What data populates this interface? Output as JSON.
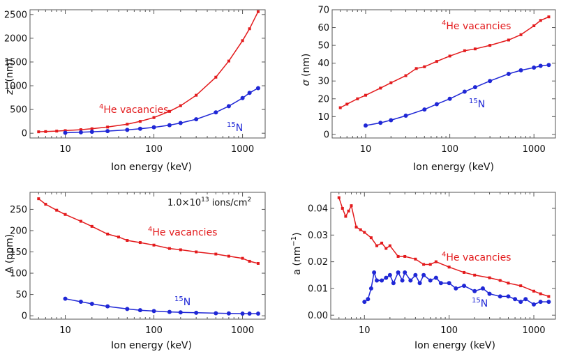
{
  "colors": {
    "red": "#e31a1c",
    "blue": "#1f27d6"
  },
  "chart_data": [
    {
      "type": "line",
      "xscale": "log",
      "xlim": [
        4,
        1800
      ],
      "ylim": [
        -100,
        2600
      ],
      "yticks": [
        "0",
        "500",
        "1000",
        "1500",
        "2000",
        "2500"
      ],
      "xticks": [
        "10",
        "100",
        "1000"
      ],
      "xlabel": "Ion energy (keV)",
      "ylabel_main": "z",
      "ylabel_sub": "0",
      "ylabel_rest": " (nm)",
      "annotations": [
        {
          "sup": "4",
          "text": "He vacancies",
          "series": "red"
        },
        {
          "sup": "15",
          "text": "N",
          "series": "blue"
        }
      ],
      "series": [
        {
          "name": "4He vacancies",
          "color": "red",
          "marker": "square",
          "x": [
            5,
            6,
            8,
            10,
            15,
            20,
            30,
            50,
            70,
            100,
            150,
            200,
            300,
            500,
            700,
            1000,
            1200,
            1500
          ],
          "y": [
            30,
            35,
            45,
            55,
            75,
            95,
            130,
            190,
            250,
            330,
            460,
            580,
            800,
            1180,
            1520,
            1950,
            2200,
            2560
          ]
        },
        {
          "name": "15N",
          "color": "blue",
          "marker": "circle",
          "x": [
            10,
            15,
            20,
            30,
            50,
            70,
            100,
            150,
            200,
            300,
            500,
            700,
            1000,
            1200,
            1500
          ],
          "y": [
            10,
            20,
            30,
            45,
            70,
            95,
            125,
            170,
            215,
            295,
            440,
            570,
            740,
            850,
            950
          ]
        }
      ]
    },
    {
      "type": "line",
      "xscale": "log",
      "xlim": [
        4,
        1800
      ],
      "ylim": [
        -2,
        70
      ],
      "yticks": [
        "0",
        "10",
        "20",
        "30",
        "40",
        "50",
        "60",
        "70"
      ],
      "xticks": [
        "10",
        "100",
        "1000"
      ],
      "xlabel": "Ion energy (keV)",
      "ylabel_main": "σ",
      "ylabel_sub": "",
      "ylabel_rest": " (nm)",
      "annotations": [
        {
          "sup": "4",
          "text": "He vacancies",
          "series": "red"
        },
        {
          "sup": "15",
          "text": "N",
          "series": "blue"
        }
      ],
      "series": [
        {
          "name": "4He vacancies",
          "color": "red",
          "marker": "square",
          "x": [
            5,
            6,
            8,
            10,
            15,
            20,
            30,
            40,
            50,
            70,
            100,
            150,
            200,
            300,
            500,
            700,
            1000,
            1200,
            1500
          ],
          "y": [
            15,
            17,
            20,
            22,
            26,
            29,
            33,
            37,
            38,
            41,
            44,
            47,
            48,
            50,
            53,
            56,
            61,
            64,
            66
          ]
        },
        {
          "name": "15N",
          "color": "blue",
          "marker": "circle",
          "x": [
            10,
            15,
            20,
            30,
            50,
            70,
            100,
            150,
            200,
            300,
            500,
            700,
            1000,
            1200,
            1500
          ],
          "y": [
            5,
            6.5,
            8,
            10.5,
            14,
            17,
            20,
            24,
            26.5,
            30,
            34,
            36,
            37.5,
            38.5,
            39
          ]
        }
      ]
    },
    {
      "type": "line",
      "xscale": "log",
      "xlim": [
        4,
        1800
      ],
      "ylim": [
        -8,
        290
      ],
      "yticks": [
        "0",
        "50",
        "100",
        "150",
        "200",
        "250"
      ],
      "xticks": [
        "10",
        "100",
        "1000"
      ],
      "xlabel": "Ion energy (keV)",
      "ylabel_main": "A",
      "ylabel_sub": "",
      "ylabel_rest": " (ppm)",
      "fluence": {
        "mantissa": "1.0×10",
        "exp": "13",
        "unit": " ions/cm",
        "unit_exp": "2"
      },
      "annotations": [
        {
          "sup": "4",
          "text": "He vacancies",
          "series": "red"
        },
        {
          "sup": "15",
          "text": "N",
          "series": "blue"
        }
      ],
      "series": [
        {
          "name": "4He vacancies",
          "color": "red",
          "marker": "square",
          "x": [
            5,
            6,
            8,
            10,
            15,
            20,
            30,
            40,
            50,
            70,
            100,
            150,
            200,
            300,
            500,
            700,
            1000,
            1200,
            1500
          ],
          "y": [
            275,
            262,
            248,
            238,
            222,
            210,
            192,
            185,
            177,
            172,
            166,
            158,
            155,
            150,
            145,
            140,
            135,
            128,
            123
          ]
        },
        {
          "name": "15N",
          "color": "blue",
          "marker": "circle",
          "x": [
            10,
            15,
            20,
            30,
            50,
            70,
            100,
            150,
            200,
            300,
            500,
            700,
            1000,
            1200,
            1500
          ],
          "y": [
            40,
            33,
            28,
            22,
            16,
            13,
            11,
            9,
            8,
            7,
            6,
            5.5,
            5,
            5,
            5
          ]
        }
      ]
    },
    {
      "type": "line",
      "xscale": "log",
      "xlim": [
        4,
        1800
      ],
      "ylim": [
        -0.0015,
        0.046
      ],
      "yticks": [
        "0.00",
        "0.01",
        "0.02",
        "0.03",
        "0.04"
      ],
      "xticks": [
        "10",
        "100",
        "1000"
      ],
      "xlabel": "Ion energy (keV)",
      "ylabel_main": "a",
      "ylabel_sub": "",
      "ylabel_rest": " (nm",
      "ylabel_sup": "−1",
      "ylabel_end": ")",
      "annotations": [
        {
          "sup": "4",
          "text": "He vacancies",
          "series": "red"
        },
        {
          "sup": "15",
          "text": "N",
          "series": "blue"
        }
      ],
      "series": [
        {
          "name": "4He vacancies",
          "color": "red",
          "marker": "square",
          "x": [
            5,
            5.5,
            6,
            6.5,
            7,
            8,
            9,
            10,
            12,
            14,
            16,
            18,
            20,
            25,
            30,
            40,
            50,
            60,
            70,
            100,
            150,
            200,
            300,
            400,
            500,
            700,
            1000,
            1200,
            1500
          ],
          "y": [
            0.044,
            0.04,
            0.037,
            0.039,
            0.041,
            0.033,
            0.032,
            0.031,
            0.029,
            0.026,
            0.027,
            0.025,
            0.026,
            0.022,
            0.022,
            0.021,
            0.019,
            0.019,
            0.02,
            0.018,
            0.016,
            0.015,
            0.014,
            0.013,
            0.012,
            0.011,
            0.009,
            0.008,
            0.007
          ]
        },
        {
          "name": "15N",
          "color": "blue",
          "marker": "circle",
          "x": [
            10,
            11,
            12,
            13,
            14,
            16,
            18,
            20,
            22,
            25,
            28,
            30,
            35,
            40,
            45,
            50,
            60,
            70,
            80,
            100,
            120,
            150,
            200,
            250,
            300,
            400,
            500,
            600,
            700,
            800,
            1000,
            1200,
            1500
          ],
          "y": [
            0.005,
            0.006,
            0.01,
            0.016,
            0.013,
            0.013,
            0.014,
            0.015,
            0.012,
            0.016,
            0.013,
            0.016,
            0.013,
            0.015,
            0.012,
            0.015,
            0.013,
            0.014,
            0.012,
            0.012,
            0.01,
            0.011,
            0.009,
            0.01,
            0.008,
            0.007,
            0.007,
            0.006,
            0.005,
            0.006,
            0.004,
            0.005,
            0.005
          ]
        }
      ]
    }
  ]
}
